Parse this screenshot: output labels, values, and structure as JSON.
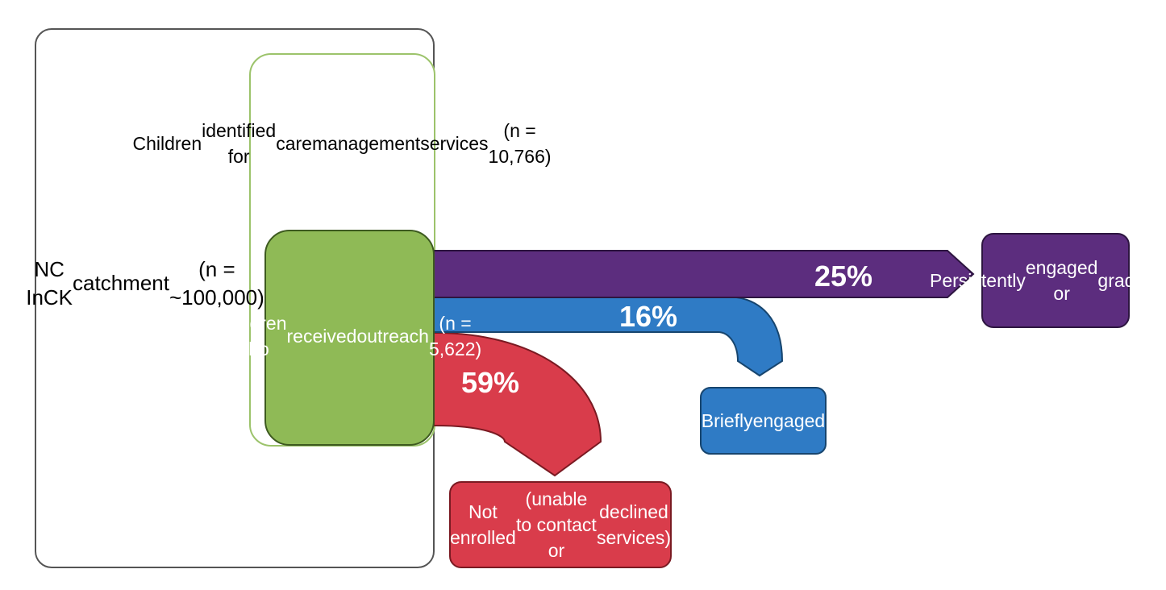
{
  "catchment": {
    "lines": [
      "NC InCK",
      "catchment",
      "(n = ~100,000)"
    ]
  },
  "identified": {
    "lines": [
      "Children",
      "identified for",
      "care",
      "management",
      "services",
      "(n = 10,766)"
    ]
  },
  "outreach": {
    "lines": [
      "Children who",
      "received",
      "outreach",
      "(n = 5,622)"
    ]
  },
  "flows": {
    "persistent": {
      "percent": "25%",
      "color": "#5c2d7e"
    },
    "brief": {
      "percent": "16%",
      "color": "#2f7bc5"
    },
    "not_enrolled": {
      "percent": "59%",
      "color": "#d93c4b"
    }
  },
  "outcomes": {
    "persistent": {
      "lines": [
        "Persistently",
        "engaged or",
        "graduated"
      ]
    },
    "brief": {
      "lines": [
        "Briefly",
        "engaged"
      ]
    },
    "not_enrolled": {
      "lines": [
        "Not enrolled",
        "(unable to contact or",
        "declined services)"
      ]
    }
  },
  "colors": {
    "green_fill": "#8fba56",
    "green_border": "#9cc36b",
    "dark_border": "#444444"
  }
}
